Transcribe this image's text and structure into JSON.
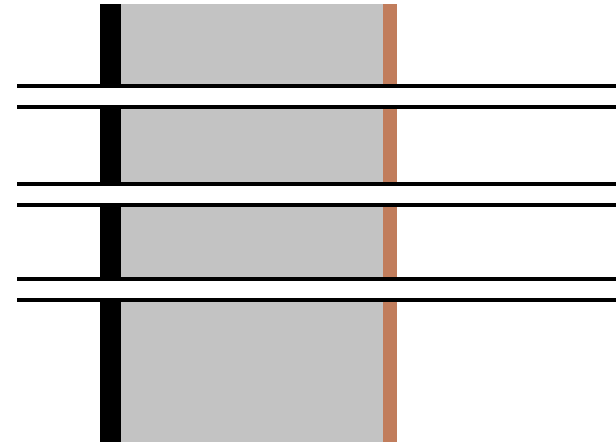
{
  "colors": {
    "background": "#ffffff",
    "gray_band": "#c3c3c3",
    "black_bar": "#000000",
    "copper_bar": "#c17d5c",
    "horizontal_lines": "#000000"
  },
  "diagram": {
    "gray_band": {
      "visible": true
    },
    "left_bar": {
      "visible": true
    },
    "right_bar": {
      "visible": true
    },
    "line_pairs": {
      "count": 3
    }
  }
}
